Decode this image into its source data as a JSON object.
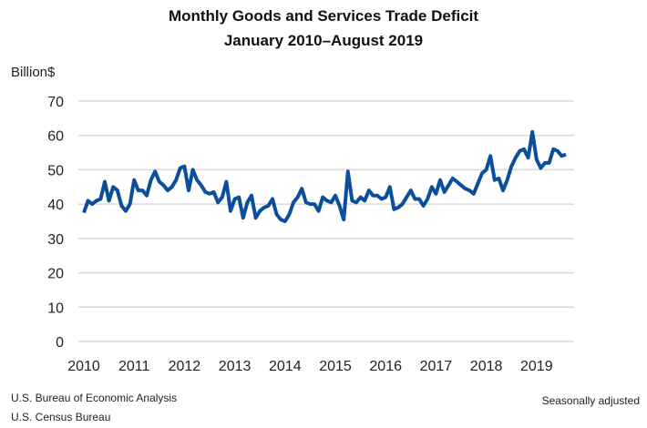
{
  "chart_data": {
    "type": "line",
    "title": "Monthly Goods and Services Trade Deficit",
    "subtitle": "January 2010–August 2019",
    "ylabel": "Billion$",
    "ylim": [
      0,
      70
    ],
    "yticks": [
      0,
      10,
      20,
      30,
      40,
      50,
      60,
      70
    ],
    "xticks": [
      "2010",
      "2011",
      "2012",
      "2013",
      "2014",
      "2015",
      "2016",
      "2017",
      "2018",
      "2019"
    ],
    "x_start": "2010-01",
    "x_end": "2019-08",
    "grid": true,
    "color": "#0b4f9c",
    "values": [
      37.5,
      41,
      40,
      41,
      41.5,
      46.5,
      41,
      45,
      44,
      39.5,
      38,
      40,
      47,
      44,
      44,
      42.5,
      47,
      49.5,
      46.5,
      45.5,
      44,
      45,
      47,
      50.5,
      51,
      44,
      50,
      47,
      45.5,
      43.5,
      43,
      43.5,
      40.5,
      42,
      46.5,
      38,
      41.5,
      42,
      36,
      40.5,
      42.5,
      36,
      38,
      39,
      39.5,
      41.5,
      37,
      35.5,
      35,
      37,
      40.5,
      42,
      44.5,
      40.5,
      40,
      40,
      38,
      42,
      41,
      40.5,
      42.5,
      39.5,
      35.5,
      49.5,
      41,
      40.5,
      42,
      41,
      44,
      42.5,
      42.5,
      41.5,
      42,
      45,
      38.5,
      39,
      40,
      42,
      44,
      41.5,
      41.5,
      39.5,
      41.5,
      45,
      43,
      47,
      43.5,
      45.5,
      47.5,
      46.5,
      45.5,
      44.5,
      44,
      43,
      46,
      49,
      50,
      54,
      47,
      47.5,
      44,
      47,
      51,
      53.5,
      55.5,
      56,
      53.5,
      61,
      53,
      50.5,
      52,
      52,
      56,
      55.5,
      54,
      54.5
    ]
  },
  "footer": {
    "source1": "U.S. Bureau of Economic Analysis",
    "source2": "U.S. Census Bureau",
    "note": "Seasonally adjusted"
  }
}
